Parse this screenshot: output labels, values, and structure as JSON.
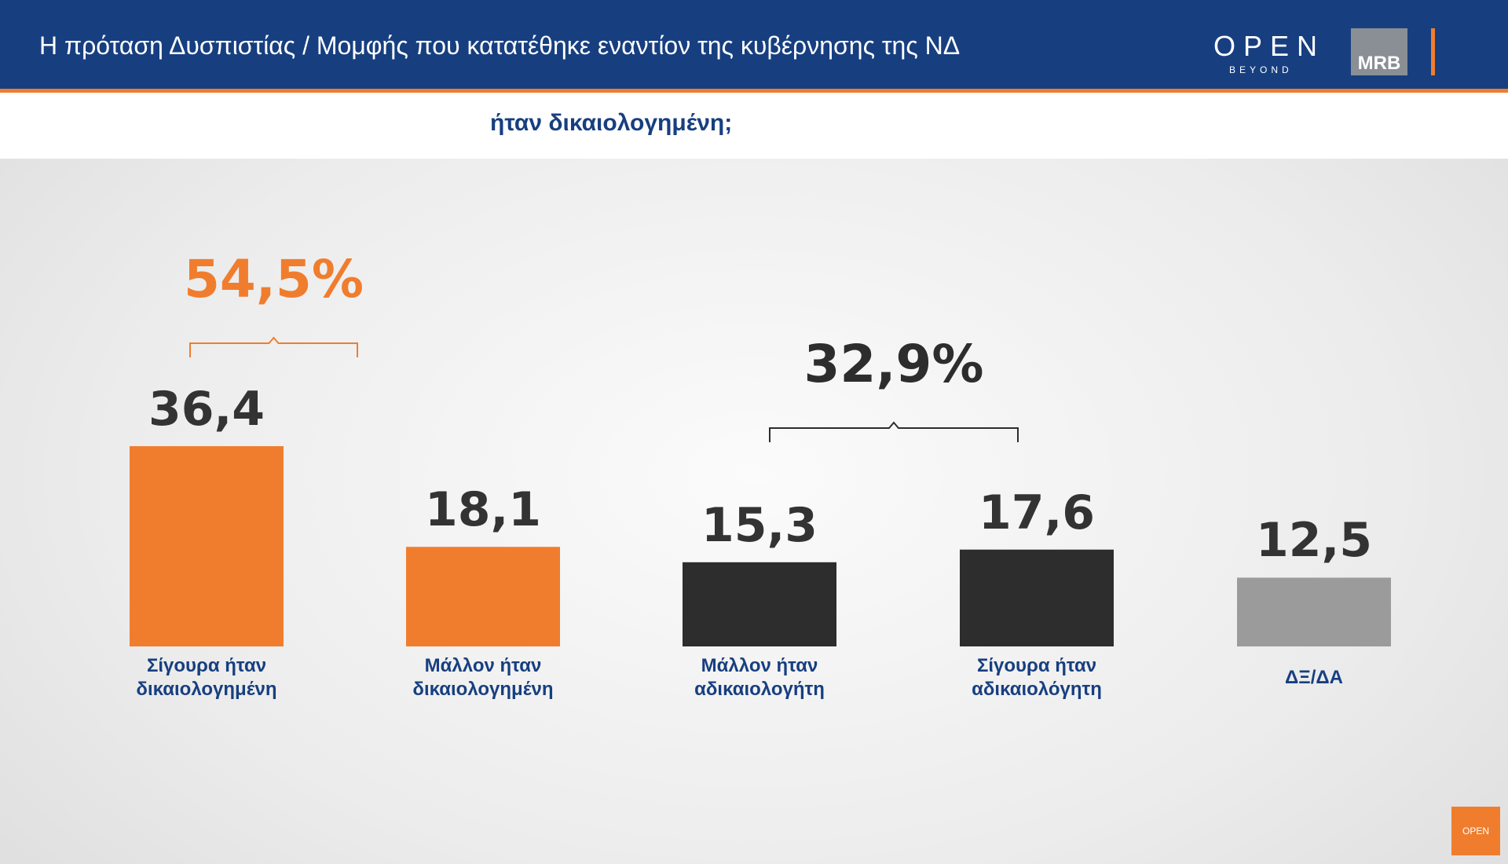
{
  "header": {
    "title": "Η πρόταση Δυσπιστίας / Μομφής που κατατέθηκε εναντίον της κυβέρνησης της ΝΔ",
    "subtitle": "ήταν δικαιολογημένη;",
    "logo_text": "OPEN",
    "logo_subtext": "BEYOND",
    "partner_logo": "MRB",
    "corner_logo": "OPEN"
  },
  "chart_data": {
    "type": "bar",
    "categories": [
      "Σίγουρα ήταν\nδικαιολογημένη",
      "Μάλλον ήταν\nδικαιολογημένη",
      "Μάλλον ήταν\nαδικαιολογήτη",
      "Σίγουρα ήταν\nαδικαιολόγητη",
      "ΔΞ/ΔΑ"
    ],
    "values": [
      36.4,
      18.1,
      15.3,
      17.6,
      12.5
    ],
    "value_labels": [
      "36,4",
      "18,1",
      "15,3",
      "17,6",
      "12,5"
    ],
    "colors": [
      "#f07d2e",
      "#f07d2e",
      "#2d2d2d",
      "#2d2d2d",
      "#9b9b9b"
    ],
    "annotations": [
      {
        "text": "54,5%",
        "color": "#f07d2e"
      },
      {
        "text": "32,9%",
        "color": "#2d2d2d"
      }
    ]
  }
}
